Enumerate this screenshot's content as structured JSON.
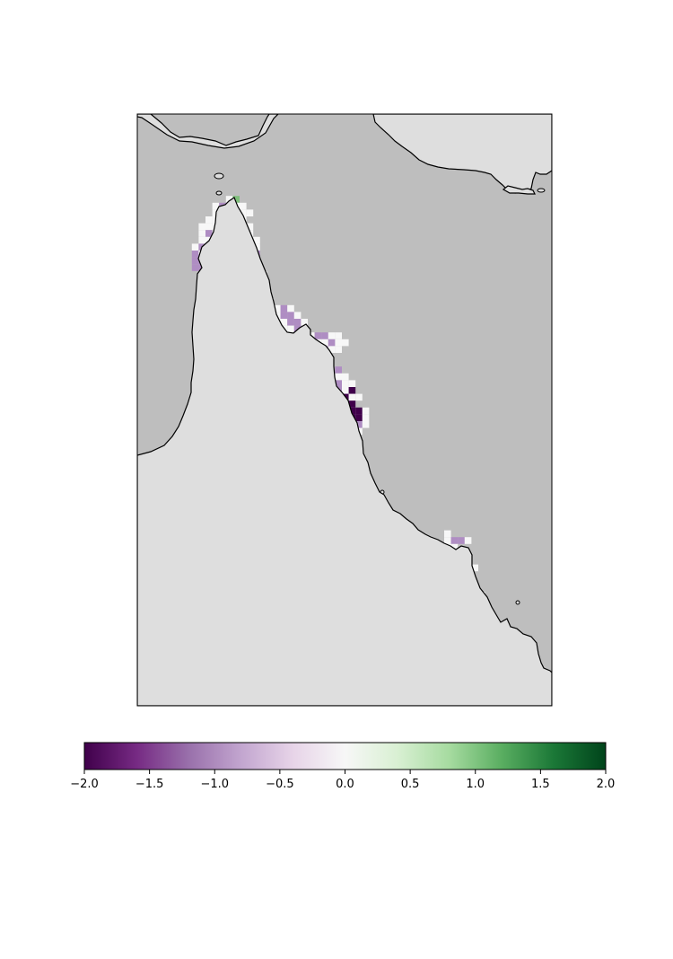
{
  "map": {
    "region": "Cape York Peninsula, Queensland",
    "colors": {
      "ocean": "#bebebe",
      "land": "#dedede",
      "coastline": "#000000",
      "frame": "#000000",
      "no_change_cell": "#f7f7f7",
      "moderate_decrease_cell": "#af8dc3",
      "strong_decrease_cell": "#40004b",
      "moderate_increase_cell": "#7fbf7b"
    },
    "cell_value_legend": {
      "no_change_cell": 0.0,
      "moderate_decrease_cell": -1.0,
      "strong_decrease_cell": -2.0,
      "moderate_increase_cell": 1.0
    }
  },
  "colorbar": {
    "colormap": "PRGn",
    "vmin": -2.0,
    "vmax": 2.0,
    "orientation": "horizontal",
    "stops": [
      "#40004b",
      "#762a83",
      "#9970ab",
      "#c2a5cf",
      "#e7d4e8",
      "#f7f7f7",
      "#d9f0d3",
      "#a6dba0",
      "#5aae61",
      "#1b7837",
      "#00441b"
    ],
    "ticks": [
      {
        "value": -2.0,
        "label": "−2.0"
      },
      {
        "value": -1.5,
        "label": "−1.5"
      },
      {
        "value": -1.0,
        "label": "−1.0"
      },
      {
        "value": -0.5,
        "label": "−0.5"
      },
      {
        "value": 0.0,
        "label": "0.0"
      },
      {
        "value": 0.5,
        "label": "0.5"
      },
      {
        "value": 1.0,
        "label": "1.0"
      },
      {
        "value": 1.5,
        "label": "1.5"
      },
      {
        "value": 2.0,
        "label": "2.0"
      }
    ]
  }
}
